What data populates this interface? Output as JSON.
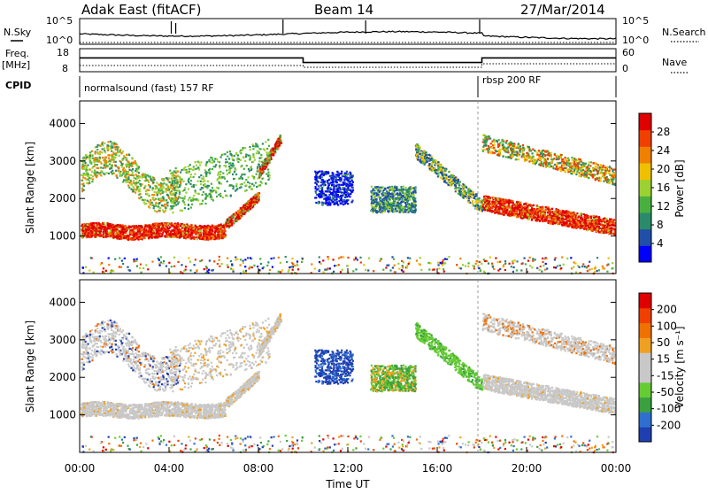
{
  "header": {
    "station": "Adak East (fitACF)",
    "beam": "Beam 14",
    "date": "27/Mar/2014"
  },
  "labels": {
    "nsky": "N.Sky",
    "nsearch": "N.Search",
    "freq_line1": "Freq.",
    "freq_line2": "[MHz]",
    "nave": "Nave",
    "cpid": "CPID"
  },
  "cpid_segments": [
    {
      "name": "normalsound (fast) 157 RF",
      "start": "00:00",
      "end": "18:00"
    },
    {
      "name": "rbsp 200 RF",
      "start": "18:00",
      "end": "24:00"
    }
  ],
  "colors": {
    "power": [
      "#0000ff",
      "#1f4fa8",
      "#2b8a6a",
      "#49b040",
      "#9bd130",
      "#f0c000",
      "#f08000",
      "#f04000",
      "#e00000"
    ],
    "velocity": [
      "#1f3fb0",
      "#2e6fcf",
      "#3aa040",
      "#66cc33",
      "#c8c8c8",
      "#c8c8c8",
      "#f0a020",
      "#f07000",
      "#f04000",
      "#e00000"
    ]
  },
  "chart_data": [
    {
      "type": "line",
      "name": "nsky-panel",
      "series": [
        {
          "name": "N.Sky"
        },
        {
          "name": "N.Search"
        }
      ],
      "x_range": [
        0,
        24
      ],
      "y_ticks_left": [
        "10^5",
        "10^0"
      ],
      "y_ticks_right": [
        "10^5",
        "10^0"
      ]
    },
    {
      "type": "line",
      "name": "freq-panel",
      "series": [
        {
          "name": "Freq.",
          "values": [
            [
              0,
              14
            ],
            [
              10,
              14
            ],
            [
              10,
              12
            ],
            [
              18,
              12
            ],
            [
              18,
              14
            ],
            [
              24,
              14
            ]
          ]
        },
        {
          "name": "Nave"
        }
      ],
      "ylabel": "Freq. [MHz]",
      "y_ticks_left": [
        "18",
        "8"
      ],
      "y_ticks_right": [
        "60",
        "0"
      ]
    },
    {
      "type": "heatmap",
      "name": "power",
      "ylabel": "Slant Range [km]",
      "ylim": [
        0,
        4600
      ],
      "y_ticks": [
        "1000",
        "2000",
        "3000",
        "4000"
      ],
      "colorbar_label": "Power [dB]",
      "colorbar_ticks": [
        "4",
        "8",
        "12",
        "16",
        "20",
        "24",
        "28"
      ]
    },
    {
      "type": "heatmap",
      "name": "velocity",
      "ylabel": "Slant Range [km]",
      "ylim": [
        0,
        4600
      ],
      "y_ticks": [
        "1000",
        "2000",
        "3000",
        "4000"
      ],
      "xlabel": "Time UT",
      "x_ticks": [
        "00:00",
        "04:00",
        "08:00",
        "12:00",
        "16:00",
        "20:00",
        "00:00"
      ],
      "colorbar_label": "Velocity [m s⁻¹]",
      "colorbar_ticks": [
        "200",
        "100",
        "50",
        "15",
        "-15",
        "-50",
        "-100",
        "-200"
      ]
    }
  ]
}
